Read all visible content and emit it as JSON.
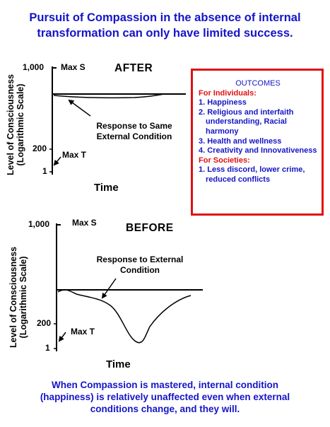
{
  "title": {
    "line1": "Pursuit of Compassion in the absence of internal",
    "line2": "transformation can only have limited success."
  },
  "after_chart": {
    "title": "AFTER",
    "ylabel_line1": "Level of Consciousness",
    "ylabel_line2": "(Logarithmic Scale)",
    "xlabel": "Time",
    "ticks": [
      "1,000",
      "200",
      "1"
    ],
    "max_s": "Max S",
    "max_t": "Max T",
    "annotation_line1": "Response to Same",
    "annotation_line2": "External Condition"
  },
  "before_chart": {
    "title": "BEFORE",
    "ylabel_line1": "Level of Consciousness",
    "ylabel_line2": "(Logarithmic Scale)",
    "xlabel": "Time",
    "ticks": [
      "1,000",
      "200",
      "1"
    ],
    "max_s": "Max S",
    "max_t": "Max T",
    "annotation_line1": "Response to External",
    "annotation_line2": "Condition"
  },
  "outcomes": {
    "heading": "OUTCOMES",
    "individuals_heading": "For Individuals:",
    "individuals": [
      "1. Happiness",
      "2. Religious and interfaith understanding, Racial harmony",
      "3. Health and wellness",
      "4. Creativity and Innovativeness"
    ],
    "societies_heading": "For Societies:",
    "societies": [
      "1. Less discord, lower crime, reduced conflicts"
    ]
  },
  "footer": {
    "line1": "When Compassion is mastered, internal condition",
    "line2": "(happiness) is relatively unaffected even when external",
    "line3": "conditions change, and they will."
  },
  "colors": {
    "title_blue": "#1515c8",
    "outcome_red": "#e01010"
  }
}
